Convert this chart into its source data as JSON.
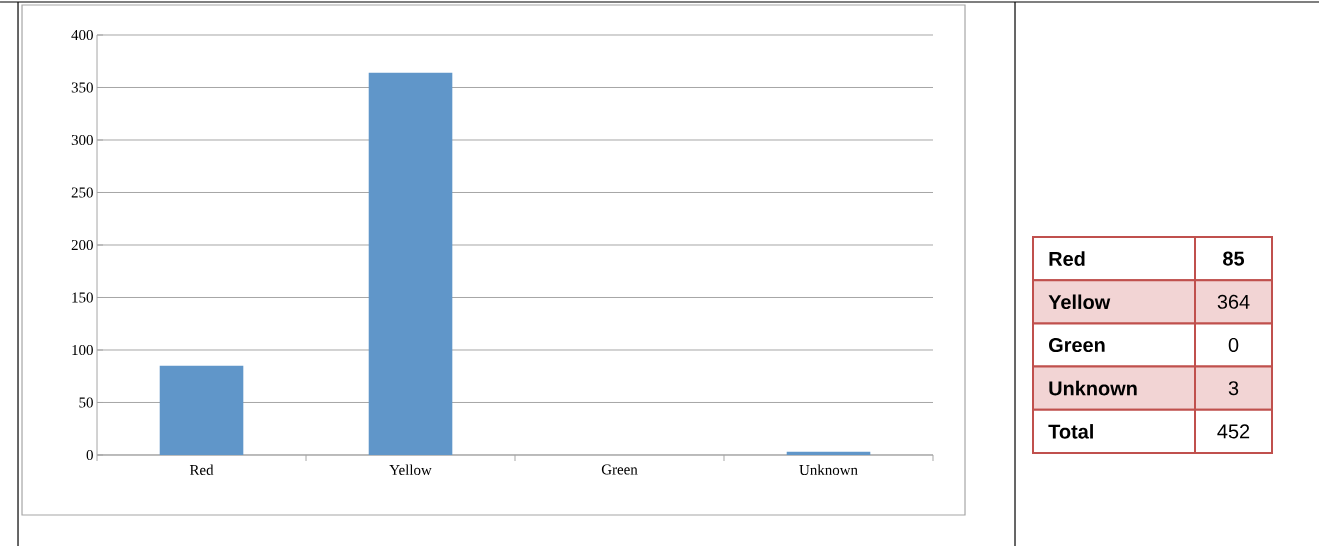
{
  "chart_data": [
    {
      "type": "bar",
      "categories": [
        "Red",
        "Yellow",
        "Green",
        "Unknown"
      ],
      "values": [
        85,
        364,
        0,
        3
      ],
      "color": "#6096c9",
      "ylim": [
        0,
        400
      ],
      "yticks": [
        0,
        50,
        100,
        150,
        200,
        250,
        300,
        350,
        400
      ],
      "grid": "y"
    },
    {
      "type": "other",
      "annotations": [
        "Red",
        "85",
        "Yellow",
        "364",
        "Green",
        "0",
        "Unknown",
        "3",
        "Total",
        "452"
      ]
    }
  ]
}
